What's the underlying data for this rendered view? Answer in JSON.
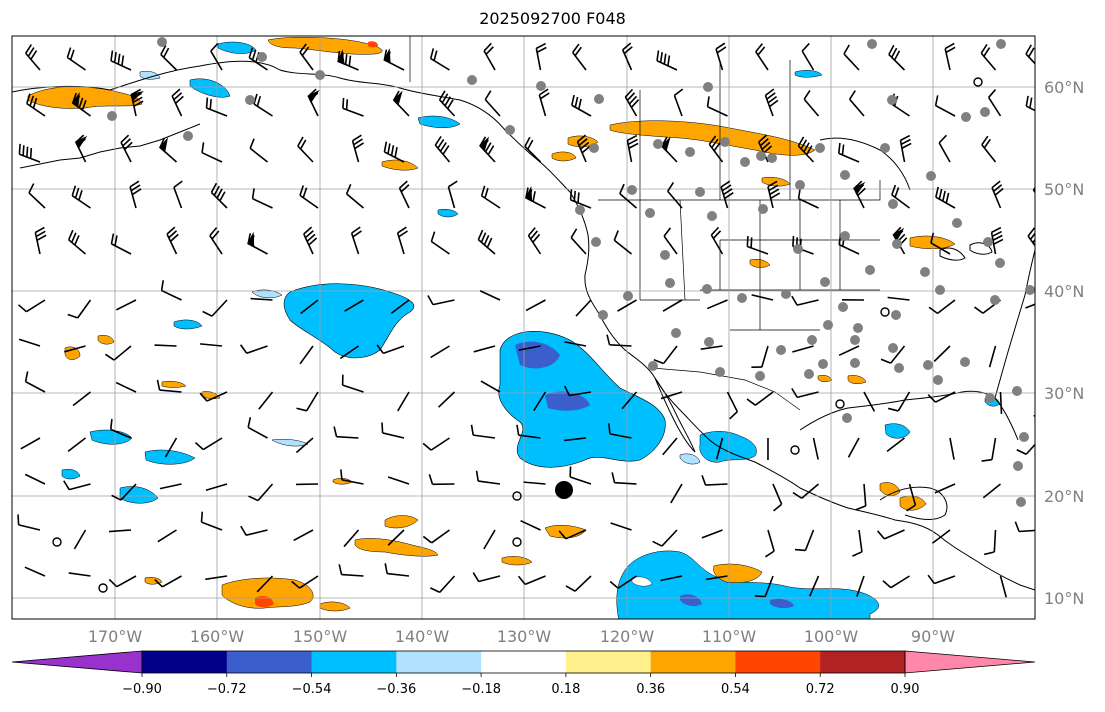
{
  "title": "2025092700 F048",
  "lat_labels": [
    "60°N",
    "50°N",
    "40°N",
    "30°N",
    "20°N",
    "10°N"
  ],
  "lon_labels": [
    "170°W",
    "160°W",
    "150°W",
    "140°W",
    "130°W",
    "120°W",
    "110°W",
    "100°W",
    "90°W"
  ],
  "colorbar": {
    "colors": [
      "#9932cc",
      "#00008b",
      "#3a5fcd",
      "#00bfff",
      "#b0e2ff",
      "#ffffff",
      "#fff08c",
      "#ffa500",
      "#ff4500",
      "#b22222",
      "#ff88aa"
    ],
    "tick_labels": [
      "−0.90",
      "−0.72",
      "−0.54",
      "−0.36",
      "−0.18",
      "0.18",
      "0.36",
      "0.54",
      "0.72",
      "0.90"
    ]
  },
  "map_style": {
    "grid_color": "#a0a0a0",
    "station_color": "#808080",
    "barb_color": "#000000",
    "coast_color": "#000000"
  }
}
